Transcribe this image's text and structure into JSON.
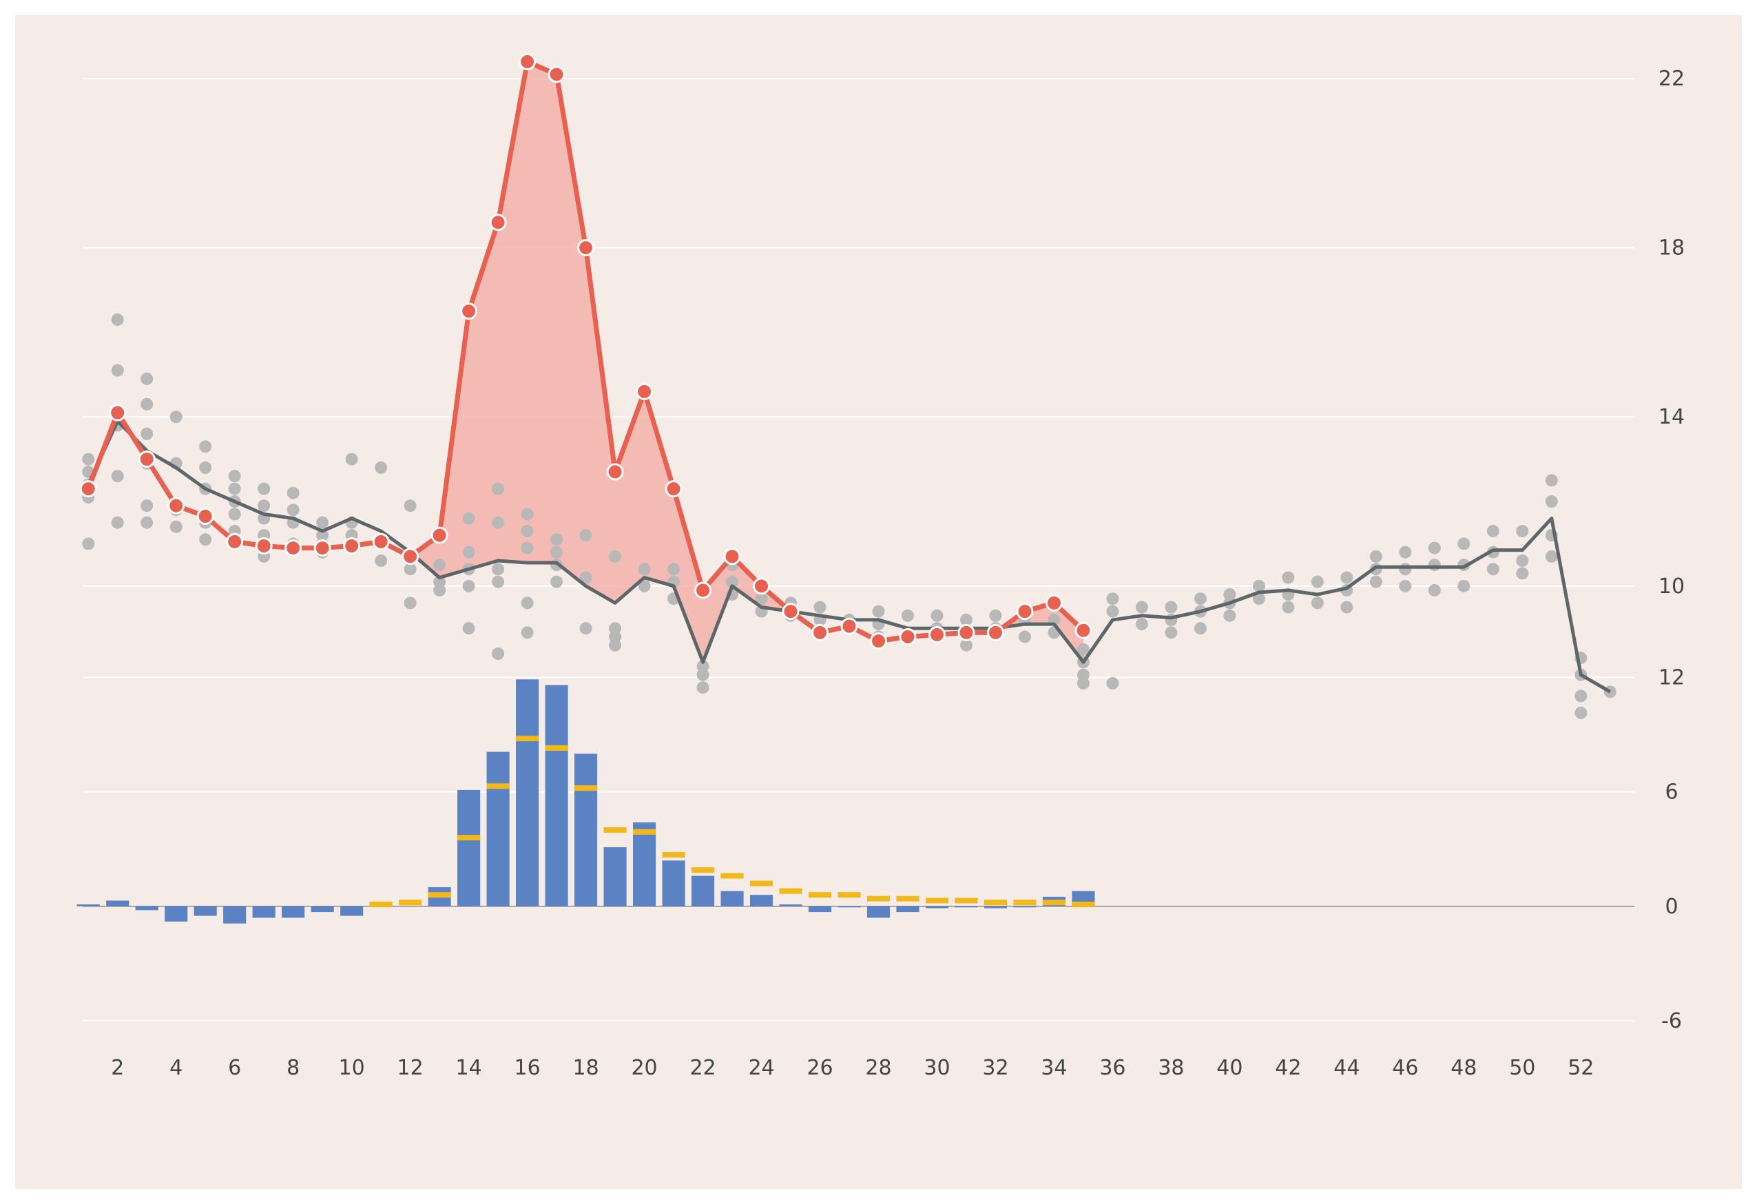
{
  "colors": {
    "background": "#f5ece8",
    "grid": "#ffffff",
    "current_line": "#e8604f",
    "current_fill": "#f2b3aa",
    "baseline_line": "#5f6669",
    "history_points": "#b8b8b8",
    "bar_fill": "#5b83c4",
    "bar_marker": "#f2b81a"
  },
  "chart_data": [
    {
      "type": "line",
      "grid": true,
      "ylim": [
        7,
        23.5
      ],
      "xlim": [
        -1.5,
        57.5
      ],
      "yticks": [
        10,
        14,
        18,
        22
      ],
      "x_ticks": [
        2,
        4,
        6,
        8,
        10,
        12,
        14,
        16,
        18,
        20,
        22,
        24,
        26,
        28,
        30,
        32,
        34,
        36,
        38,
        40,
        42,
        44,
        46,
        48,
        50,
        52
      ],
      "series": [
        {
          "role": "baseline",
          "x": [
            1,
            2,
            3,
            4,
            5,
            6,
            7,
            8,
            9,
            10,
            11,
            12,
            13,
            14,
            15,
            16,
            17,
            18,
            19,
            20,
            21,
            22,
            23,
            24,
            25,
            26,
            27,
            28,
            29,
            30,
            31,
            32,
            33,
            34,
            35,
            36,
            37,
            38,
            39,
            40,
            41,
            42,
            43,
            44,
            45,
            46,
            47,
            48,
            49,
            50,
            51,
            52,
            53
          ],
          "y": [
            12.4,
            13.9,
            13.2,
            12.8,
            12.3,
            12.0,
            11.7,
            11.6,
            11.3,
            11.6,
            11.3,
            10.8,
            10.2,
            10.4,
            10.6,
            10.55,
            10.55,
            10.0,
            9.6,
            10.2,
            10.0,
            8.2,
            10.0,
            9.5,
            9.4,
            9.3,
            9.2,
            9.2,
            9.0,
            9.0,
            9.0,
            9.0,
            9.1,
            9.1,
            8.2,
            9.2,
            9.3,
            9.25,
            9.4,
            9.6,
            9.85,
            9.9,
            9.8,
            9.95,
            10.45,
            10.45,
            10.45,
            10.45,
            10.85,
            10.85,
            11.6,
            7.9,
            7.5
          ]
        },
        {
          "role": "current",
          "x": [
            1,
            2,
            3,
            4,
            5,
            6,
            7,
            8,
            9,
            10,
            11,
            12,
            13,
            14,
            15,
            16,
            17,
            18,
            19,
            20,
            21,
            22,
            23,
            24,
            25,
            26,
            27,
            28,
            29,
            30,
            31,
            32,
            33,
            34,
            35
          ],
          "y": [
            12.3,
            14.1,
            13.0,
            11.9,
            11.65,
            11.05,
            10.95,
            10.9,
            10.9,
            10.95,
            11.05,
            10.7,
            11.2,
            16.5,
            18.6,
            22.4,
            22.1,
            18.0,
            12.7,
            14.6,
            12.3,
            9.9,
            10.7,
            10.0,
            9.4,
            8.9,
            9.05,
            8.7,
            8.8,
            8.85,
            8.9,
            8.9,
            9.4,
            9.6,
            8.95
          ]
        }
      ],
      "history_points": [
        {
          "x": 1,
          "y": [
            13.0,
            12.7,
            12.4,
            12.1,
            11.0
          ]
        },
        {
          "x": 2,
          "y": [
            16.3,
            15.1,
            13.8,
            12.6,
            11.5
          ]
        },
        {
          "x": 3,
          "y": [
            14.9,
            14.3,
            13.6,
            12.9,
            11.9,
            11.5
          ]
        },
        {
          "x": 4,
          "y": [
            14.0,
            12.9,
            11.8,
            11.4
          ]
        },
        {
          "x": 5,
          "y": [
            13.3,
            12.8,
            12.3,
            11.5,
            11.1
          ]
        },
        {
          "x": 6,
          "y": [
            12.6,
            12.3,
            12.0,
            11.7,
            11.3
          ]
        },
        {
          "x": 7,
          "y": [
            12.3,
            11.9,
            11.6,
            11.2,
            10.7
          ]
        },
        {
          "x": 8,
          "y": [
            12.2,
            11.8,
            11.5,
            11.0
          ]
        },
        {
          "x": 9,
          "y": [
            11.5,
            11.2,
            11.0,
            10.8
          ]
        },
        {
          "x": 10,
          "y": [
            13.0,
            11.5,
            11.2,
            11.0
          ]
        },
        {
          "x": 11,
          "y": [
            12.8,
            11.1,
            10.6
          ]
        },
        {
          "x": 12,
          "y": [
            11.9,
            10.4,
            9.6
          ]
        },
        {
          "x": 13,
          "y": [
            10.5,
            10.1,
            9.9
          ]
        },
        {
          "x": 14,
          "y": [
            11.6,
            10.8,
            10.4,
            10.0,
            9.0
          ]
        },
        {
          "x": 15,
          "y": [
            12.3,
            11.5,
            10.4,
            10.1,
            8.4
          ]
        },
        {
          "x": 16,
          "y": [
            11.7,
            11.3,
            10.9,
            9.6,
            8.9
          ]
        },
        {
          "x": 17,
          "y": [
            11.1,
            10.8,
            10.5,
            10.1
          ]
        },
        {
          "x": 18,
          "y": [
            11.2,
            10.2,
            9.0
          ]
        },
        {
          "x": 19,
          "y": [
            10.7,
            9.0,
            8.8,
            8.6
          ]
        },
        {
          "x": 20,
          "y": [
            10.4,
            10.0
          ]
        },
        {
          "x": 21,
          "y": [
            10.4,
            10.1,
            9.7
          ]
        },
        {
          "x": 22,
          "y": [
            8.1,
            7.9,
            7.6
          ]
        },
        {
          "x": 23,
          "y": [
            10.5,
            10.1,
            9.8
          ]
        },
        {
          "x": 24,
          "y": [
            9.7,
            9.4
          ]
        },
        {
          "x": 25,
          "y": [
            9.6,
            9.3
          ]
        },
        {
          "x": 26,
          "y": [
            9.5,
            9.2
          ]
        },
        {
          "x": 27,
          "y": [
            9.2,
            9.0
          ]
        },
        {
          "x": 28,
          "y": [
            9.4,
            9.1,
            8.8
          ]
        },
        {
          "x": 29,
          "y": [
            9.3,
            8.9
          ]
        },
        {
          "x": 30,
          "y": [
            9.3,
            9.0
          ]
        },
        {
          "x": 31,
          "y": [
            9.2,
            8.9,
            8.6
          ]
        },
        {
          "x": 32,
          "y": [
            9.3,
            9.0
          ]
        },
        {
          "x": 33,
          "y": [
            9.2,
            8.8
          ]
        },
        {
          "x": 34,
          "y": [
            9.2,
            8.9
          ]
        },
        {
          "x": 35,
          "y": [
            8.5,
            8.2,
            7.9,
            7.7
          ]
        },
        {
          "x": 36,
          "y": [
            9.7,
            9.4,
            7.7
          ]
        },
        {
          "x": 37,
          "y": [
            9.5,
            9.1
          ]
        },
        {
          "x": 38,
          "y": [
            9.5,
            9.2,
            8.9
          ]
        },
        {
          "x": 39,
          "y": [
            9.7,
            9.4,
            9.0
          ]
        },
        {
          "x": 40,
          "y": [
            9.8,
            9.6,
            9.3
          ]
        },
        {
          "x": 41,
          "y": [
            10.0,
            9.7
          ]
        },
        {
          "x": 42,
          "y": [
            10.2,
            9.8,
            9.5
          ]
        },
        {
          "x": 43,
          "y": [
            10.1,
            9.6
          ]
        },
        {
          "x": 44,
          "y": [
            10.2,
            9.9,
            9.5
          ]
        },
        {
          "x": 45,
          "y": [
            10.7,
            10.4,
            10.1
          ]
        },
        {
          "x": 46,
          "y": [
            10.8,
            10.4,
            10.0
          ]
        },
        {
          "x": 47,
          "y": [
            10.9,
            10.5,
            9.9
          ]
        },
        {
          "x": 48,
          "y": [
            11.0,
            10.5,
            10.0
          ]
        },
        {
          "x": 49,
          "y": [
            11.3,
            10.8,
            10.4
          ]
        },
        {
          "x": 50,
          "y": [
            11.3,
            10.6,
            10.3
          ]
        },
        {
          "x": 51,
          "y": [
            12.5,
            12.0,
            11.2,
            10.7
          ]
        },
        {
          "x": 52,
          "y": [
            8.3,
            7.9,
            7.4,
            7.0
          ]
        },
        {
          "x": 53,
          "y": [
            7.5
          ]
        }
      ]
    },
    {
      "type": "bar",
      "grid": true,
      "ylim": [
        -9,
        13.5
      ],
      "xlim": [
        -1.5,
        57.5
      ],
      "yticks": [
        -6,
        0,
        6,
        12
      ],
      "bars": {
        "x": [
          1,
          2,
          3,
          4,
          5,
          6,
          7,
          8,
          9,
          10,
          13,
          14,
          15,
          16,
          17,
          18,
          19,
          20,
          21,
          22,
          23,
          24,
          25,
          26,
          27,
          28,
          29,
          30,
          31,
          32,
          33,
          34,
          35
        ],
        "values": [
          0.1,
          0.3,
          -0.2,
          -0.8,
          -0.5,
          -0.9,
          -0.6,
          -0.6,
          -0.3,
          -0.5,
          1.0,
          6.1,
          8.1,
          11.9,
          11.6,
          8.0,
          3.1,
          4.4,
          2.4,
          1.6,
          0.8,
          0.6,
          0.1,
          -0.3,
          0.0,
          -0.6,
          -0.3,
          -0.1,
          0.0,
          -0.1,
          0.0,
          0.5,
          0.8
        ]
      },
      "markers": {
        "x": [
          11,
          12,
          13,
          14,
          15,
          16,
          17,
          18,
          19,
          20,
          21,
          22,
          23,
          24,
          25,
          26,
          27,
          28,
          29,
          30,
          31,
          32,
          33,
          34,
          35
        ],
        "values": [
          0.1,
          0.2,
          0.6,
          3.6,
          6.3,
          8.8,
          8.3,
          6.2,
          4.0,
          3.9,
          2.7,
          1.9,
          1.6,
          1.2,
          0.8,
          0.6,
          0.6,
          0.4,
          0.4,
          0.3,
          0.3,
          0.2,
          0.2,
          0.2,
          0.1
        ]
      }
    }
  ]
}
